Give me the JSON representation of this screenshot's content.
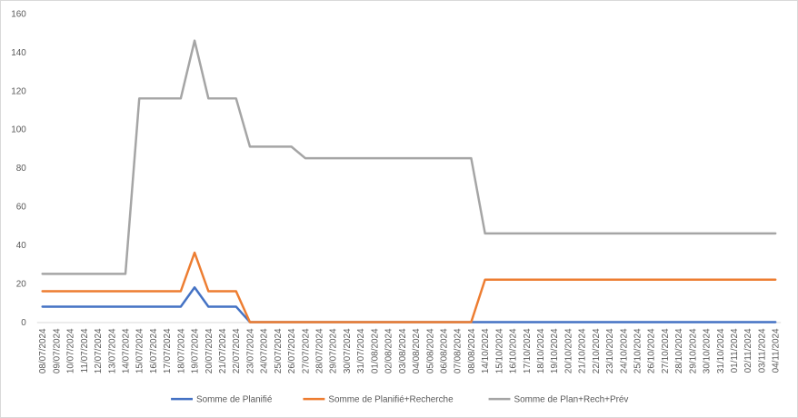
{
  "chart_data": {
    "type": "line",
    "title": "",
    "xlabel": "",
    "ylabel": "",
    "ylim": [
      0,
      160
    ],
    "yticks": [
      0,
      20,
      40,
      60,
      80,
      100,
      120,
      140,
      160
    ],
    "grid": false,
    "legend_position": "bottom",
    "x": [
      "08/07/2024",
      "09/07/2024",
      "10/07/2024",
      "11/07/2024",
      "12/07/2024",
      "13/07/2024",
      "14/07/2024",
      "15/07/2024",
      "16/07/2024",
      "17/07/2024",
      "18/07/2024",
      "19/07/2024",
      "20/07/2024",
      "21/07/2024",
      "22/07/2024",
      "23/07/2024",
      "24/07/2024",
      "25/07/2024",
      "26/07/2024",
      "27/07/2024",
      "28/07/2024",
      "29/07/2024",
      "30/07/2024",
      "31/07/2024",
      "01/08/2024",
      "02/08/2024",
      "03/08/2024",
      "04/08/2024",
      "05/08/2024",
      "06/08/2024",
      "07/08/2024",
      "08/08/2024",
      "14/10/2024",
      "15/10/2024",
      "16/10/2024",
      "17/10/2024",
      "18/10/2024",
      "19/10/2024",
      "20/10/2024",
      "21/10/2024",
      "22/10/2024",
      "23/10/2024",
      "24/10/2024",
      "25/10/2024",
      "26/10/2024",
      "27/10/2024",
      "28/10/2024",
      "29/10/2024",
      "30/10/2024",
      "31/10/2024",
      "01/11/2024",
      "02/11/2024",
      "03/11/2024",
      "04/11/2024"
    ],
    "series": [
      {
        "name": "Somme de Planifié",
        "color": "#4472c4",
        "values": [
          8,
          8,
          8,
          8,
          8,
          8,
          8,
          8,
          8,
          8,
          8,
          18,
          8,
          8,
          8,
          0,
          0,
          0,
          0,
          0,
          0,
          0,
          0,
          0,
          0,
          0,
          0,
          0,
          0,
          0,
          0,
          0,
          0,
          0,
          0,
          0,
          0,
          0,
          0,
          0,
          0,
          0,
          0,
          0,
          0,
          0,
          0,
          0,
          0,
          0,
          0,
          0,
          0,
          0
        ]
      },
      {
        "name": "Somme de Planifié+Recherche",
        "color": "#ed7d31",
        "values": [
          16,
          16,
          16,
          16,
          16,
          16,
          16,
          16,
          16,
          16,
          16,
          36,
          16,
          16,
          16,
          0,
          0,
          0,
          0,
          0,
          0,
          0,
          0,
          0,
          0,
          0,
          0,
          0,
          0,
          0,
          0,
          0,
          22,
          22,
          22,
          22,
          22,
          22,
          22,
          22,
          22,
          22,
          22,
          22,
          22,
          22,
          22,
          22,
          22,
          22,
          22,
          22,
          22,
          22
        ]
      },
      {
        "name": "Somme de Plan+Rech+Prév",
        "color": "#a5a5a5",
        "values": [
          25,
          25,
          25,
          25,
          25,
          25,
          25,
          116,
          116,
          116,
          116,
          146,
          116,
          116,
          116,
          91,
          91,
          91,
          91,
          85,
          85,
          85,
          85,
          85,
          85,
          85,
          85,
          85,
          85,
          85,
          85,
          85,
          46,
          46,
          46,
          46,
          46,
          46,
          46,
          46,
          46,
          46,
          46,
          46,
          46,
          46,
          46,
          46,
          46,
          46,
          46,
          46,
          46,
          46
        ]
      }
    ]
  }
}
